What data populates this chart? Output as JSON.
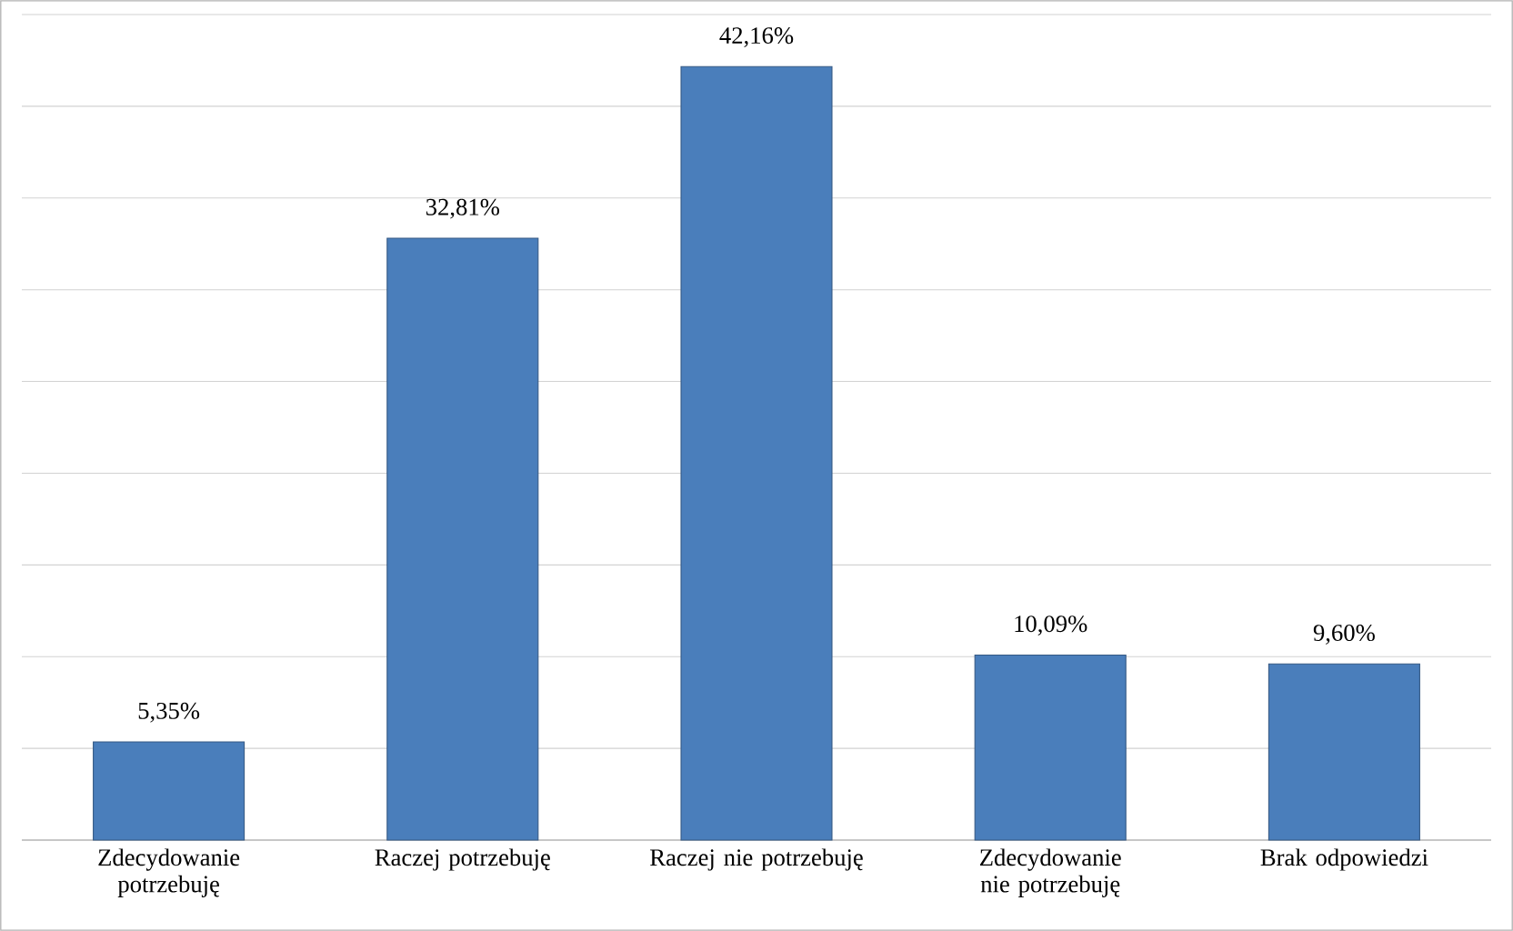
{
  "chart_data": {
    "type": "bar",
    "categories": [
      "Zdecydowanie potrzebuję",
      "Raczej potrzebuję",
      "Raczej nie potrzebuję",
      "Zdecydowanie nie potrzebuję",
      "Brak odpowiedzi"
    ],
    "values": [
      5.35,
      32.81,
      42.16,
      10.09,
      9.6
    ],
    "value_labels": [
      "5,35%",
      "32,81%",
      "42,16%",
      "10,09%",
      "9,60%"
    ],
    "color": "#4a7ebb",
    "ylim": [
      0,
      45
    ],
    "yticks": [
      {
        "value": 0,
        "label": null
      },
      {
        "value": 5,
        "label": null
      },
      {
        "value": 10,
        "label": null
      },
      {
        "value": 15,
        "label": null
      },
      {
        "value": 20,
        "label": null
      },
      {
        "value": 25,
        "label": null
      },
      {
        "value": 30,
        "label": null
      },
      {
        "value": 35,
        "label": null
      },
      {
        "value": 40,
        "label": null
      },
      {
        "value": 45,
        "label": null
      }
    ],
    "grid": "y",
    "tick_labels": "x"
  }
}
